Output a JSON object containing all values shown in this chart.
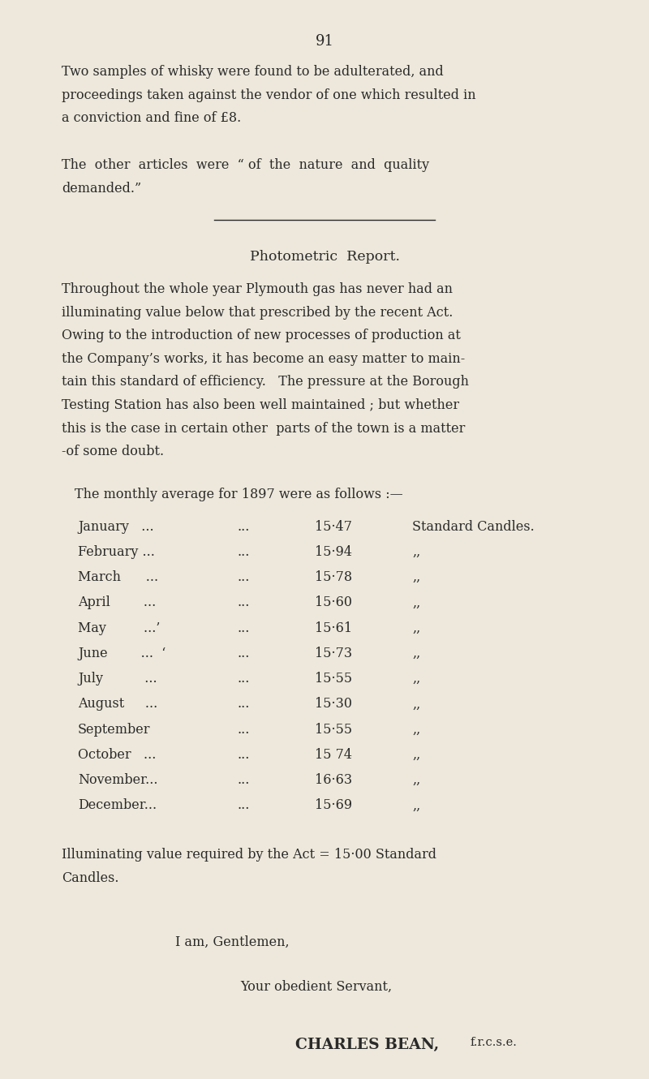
{
  "bg_color": "#ede8db",
  "text_color": "#2a2a2a",
  "page_number": "91",
  "p1_lines": [
    "Two samples of whisky were found to be adulterated, and",
    "proceedings taken against the vendor of one which resulted in",
    "a conviction and fine of £8."
  ],
  "p2_lines": [
    "The  other  articles  were  “ of  the  nature  and  quality",
    "demanded.”"
  ],
  "section_title": "Photometric  Report.",
  "p3_lines": [
    "Throughout the whole year Plymouth gas has never had an",
    "illuminating value below that prescribed by the recent Act.",
    "Owing to the introduction of new processes of production at",
    "the Company’s works, it has become an easy matter to main­tain this standard of efficiency.   The pressure at the Borough",
    "tain this standard of efficiency.   The pressure at the Borough",
    "Testing Station has also been well maintained ; but whether",
    "this is the case in certain other  parts of the town is a matter",
    "­of some doubt."
  ],
  "intro_line": "The monthly average for 1897 were as follows :—",
  "table_rows": [
    [
      "January   ...",
      "...",
      "15·47",
      "Standard Candles."
    ],
    [
      "February ...",
      "...",
      "15·94",
      ",,"
    ],
    [
      "March      ...",
      "...",
      "15·78",
      ",,"
    ],
    [
      "April        ...",
      "...",
      "15·60",
      ",,"
    ],
    [
      "May         ...’",
      "...",
      "15·61",
      ",,"
    ],
    [
      "June        ...  ‘",
      "...",
      "15·73",
      ",,"
    ],
    [
      "July          ...",
      "...",
      "15·55",
      ",,"
    ],
    [
      "August     ...",
      "...",
      "15·30",
      ",,"
    ],
    [
      "September",
      "...",
      "15·55",
      ",,"
    ],
    [
      "October   ...",
      "...",
      "15 74",
      ",,"
    ],
    [
      "November...",
      "...",
      "16·63",
      ",,"
    ],
    [
      "December...",
      "...",
      "15·69",
      ",,"
    ]
  ],
  "illum_lines": [
    "Illuminating value required by the Act = 15·00 Standard",
    "Candles."
  ],
  "closing1": "I am, Gentlemen,",
  "closing2": "Your obedient Servant,",
  "sig_main": "CHARLES BEAN, ",
  "sig_sub": "f.r.c.s.e."
}
